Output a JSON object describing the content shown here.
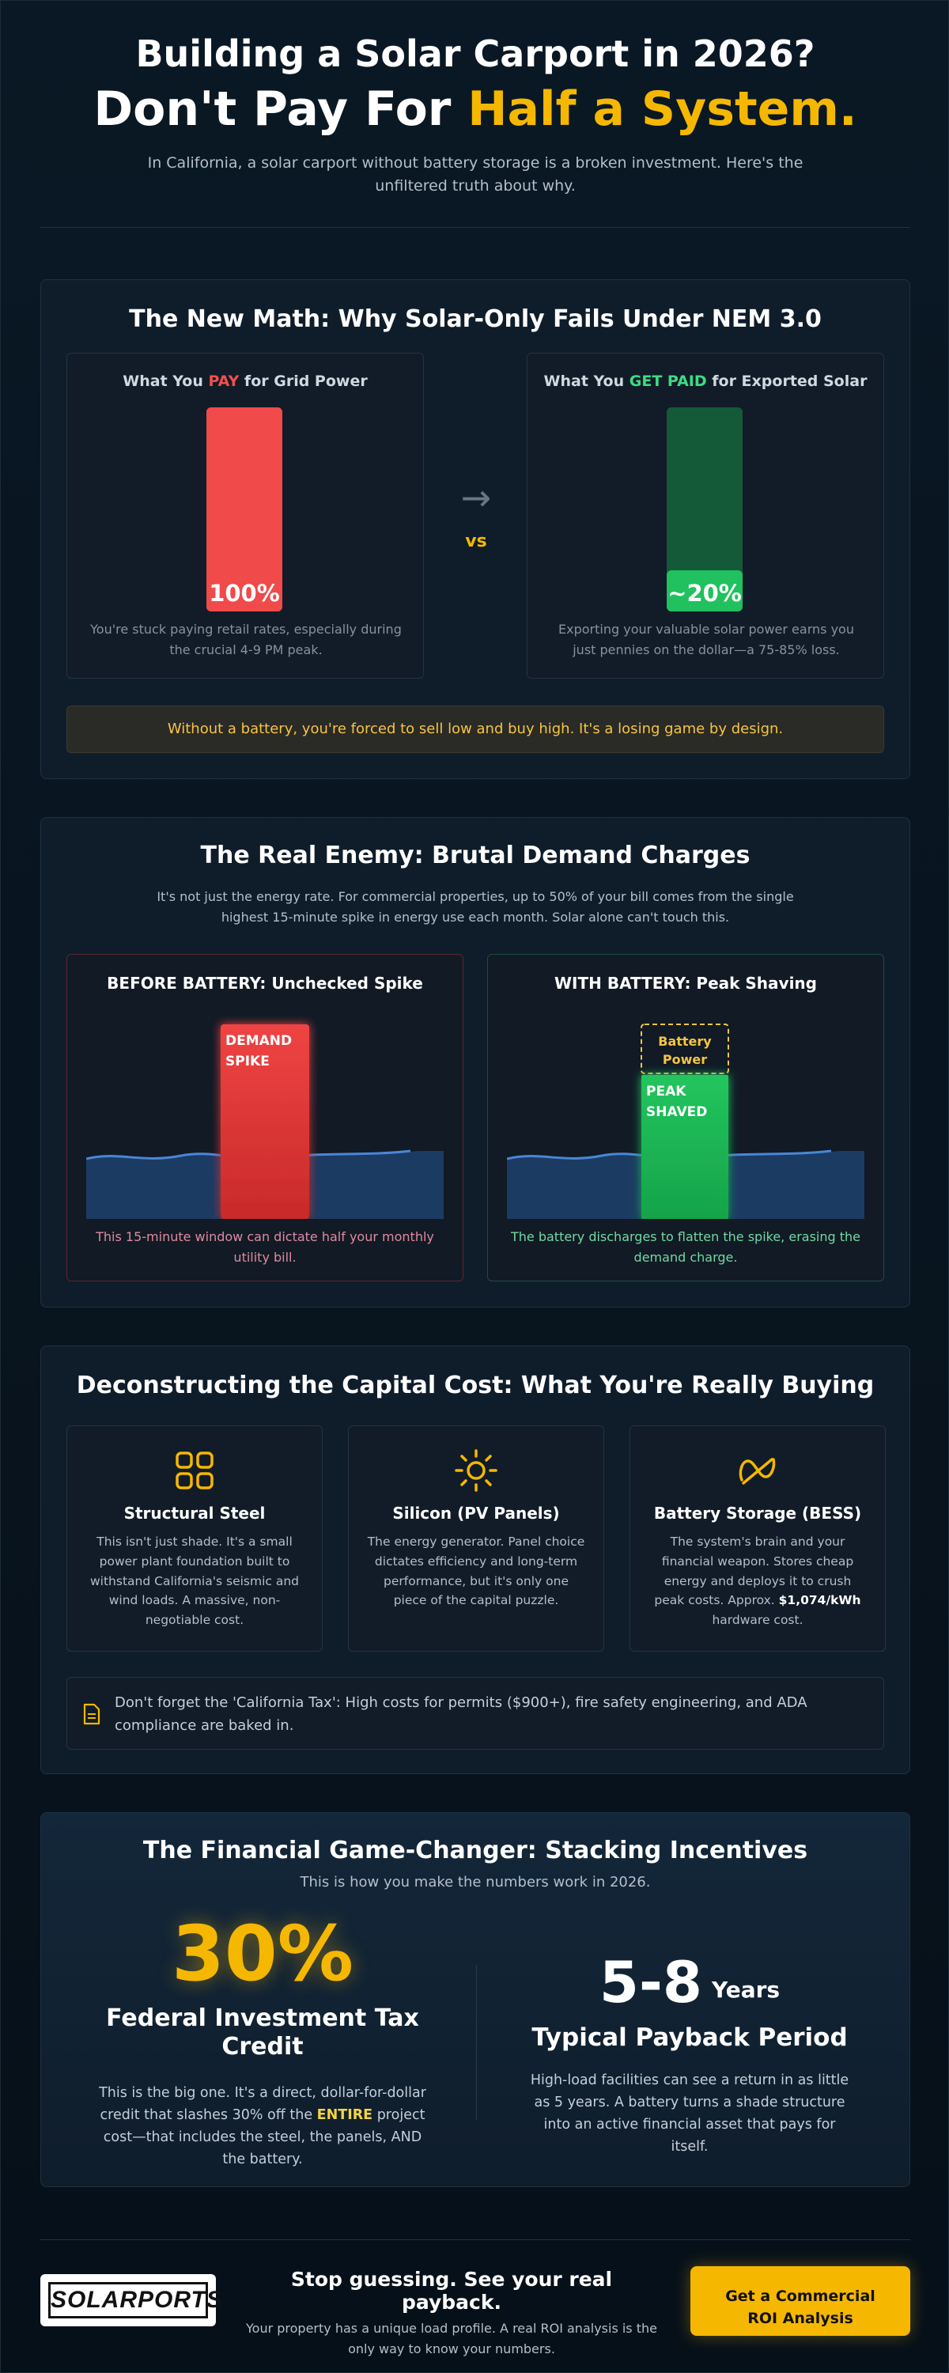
{
  "hero": {
    "title_line1": "Building a Solar Carport in 2026?",
    "title_line2_prefix": "Don't Pay For ",
    "title_line2_accent": "Half a System.",
    "subtitle": "In California, a solar carport without battery storage is a broken investment. Here's the unfiltered truth about why."
  },
  "nem_section": {
    "title": "The New Math: Why Solar-Only Fails Under NEM 3.0",
    "left": {
      "head_prefix": "What You ",
      "head_accent": "PAY",
      "head_suffix": " for Grid Power",
      "value_label": "100%",
      "value_fraction": 1.0,
      "note": "You're stuck paying retail rates, especially during the crucial 4-9 PM peak."
    },
    "arrow": "→",
    "vs": "vs",
    "right": {
      "head_prefix": "What You ",
      "head_accent": "GET PAID",
      "head_suffix": " for Exported Solar",
      "value_label": "~20%",
      "value_fraction": 0.2,
      "note": "Exporting your valuable solar power earns you just pennies on the dollar—a 75-85% loss."
    },
    "warning": "Without a battery, you're forced to sell low and buy high. It's a losing game by design."
  },
  "demand_section": {
    "title": "The Real Enemy: Brutal Demand Charges",
    "subtitle": "It's not just the energy rate. For commercial properties, up to 50% of your bill comes from the single highest 15-minute spike in energy use each month. Solar alone can't touch this.",
    "before": {
      "head": "BEFORE BATTERY: Unchecked Spike",
      "spike_label_1": "DEMAND",
      "spike_label_2": "SPIKE",
      "note": "This 15-minute window can dictate half your monthly utility bill."
    },
    "after": {
      "head": "WITH BATTERY: Peak Shaving",
      "battery_label_1": "Battery",
      "battery_label_2": "Power",
      "peak_label_1": "PEAK",
      "peak_label_2": "SHAVED",
      "note": "The battery discharges to flatten the spike, erasing the demand charge."
    }
  },
  "cost_section": {
    "title": "Deconstructing the Capital Cost: What You're Really Buying",
    "cards": [
      {
        "icon": "grid-icon",
        "title": "Structural Steel",
        "text": "This isn't just shade. It's a small power plant foundation built to withstand California's seismic and wind loads. A massive, non-negotiable cost."
      },
      {
        "icon": "sun-icon",
        "title": "Silicon (PV Panels)",
        "text": "The energy generator. Panel choice dictates efficiency and long-term performance, but it's only one piece of the capital puzzle."
      },
      {
        "icon": "battery-icon",
        "title": "Battery Storage (BESS)",
        "text_before": "The system's brain and your financial weapon. Stores cheap energy and deploys it to crush peak costs. Approx. ",
        "text_bold": "$1,074/kWh",
        "text_after": " hardware cost."
      }
    ],
    "tax_note": "Don't forget the 'California Tax': High costs for permits ($900+), fire safety engineering, and ADA compliance are baked in."
  },
  "incentives_section": {
    "title": "The Financial Game-Changer: Stacking Incentives",
    "subtitle": "This is how you make the numbers work in 2026.",
    "credit_value": "30%",
    "credit_label": "Federal Investment Tax Credit",
    "credit_text_before": "This is the big one. It's a direct, dollar-for-dollar credit that slashes 30% off the ",
    "credit_text_hl": "ENTIRE",
    "credit_text_after": " project cost—that includes the steel, the panels, AND the battery.",
    "payback_value": "5-8",
    "payback_unit": "Years",
    "payback_label": "Typical Payback Period",
    "payback_text": "High-load facilities can see a return in as little as 5 years. A battery turns a shade structure into an active financial asset that pays for itself."
  },
  "footer": {
    "logo_text": "SOLARPORTS",
    "cta_title": "Stop guessing. See your real payback.",
    "cta_sub": "Your property has a unique load profile. A real ROI analysis is the only way to know your numbers.",
    "button_line1": "Get a Commercial",
    "button_line2": "ROI Analysis"
  },
  "colors": {
    "accent": "#f5b700",
    "pay_red": "#f05050",
    "paid_green": "#3ddc84",
    "background": "#07121d"
  }
}
